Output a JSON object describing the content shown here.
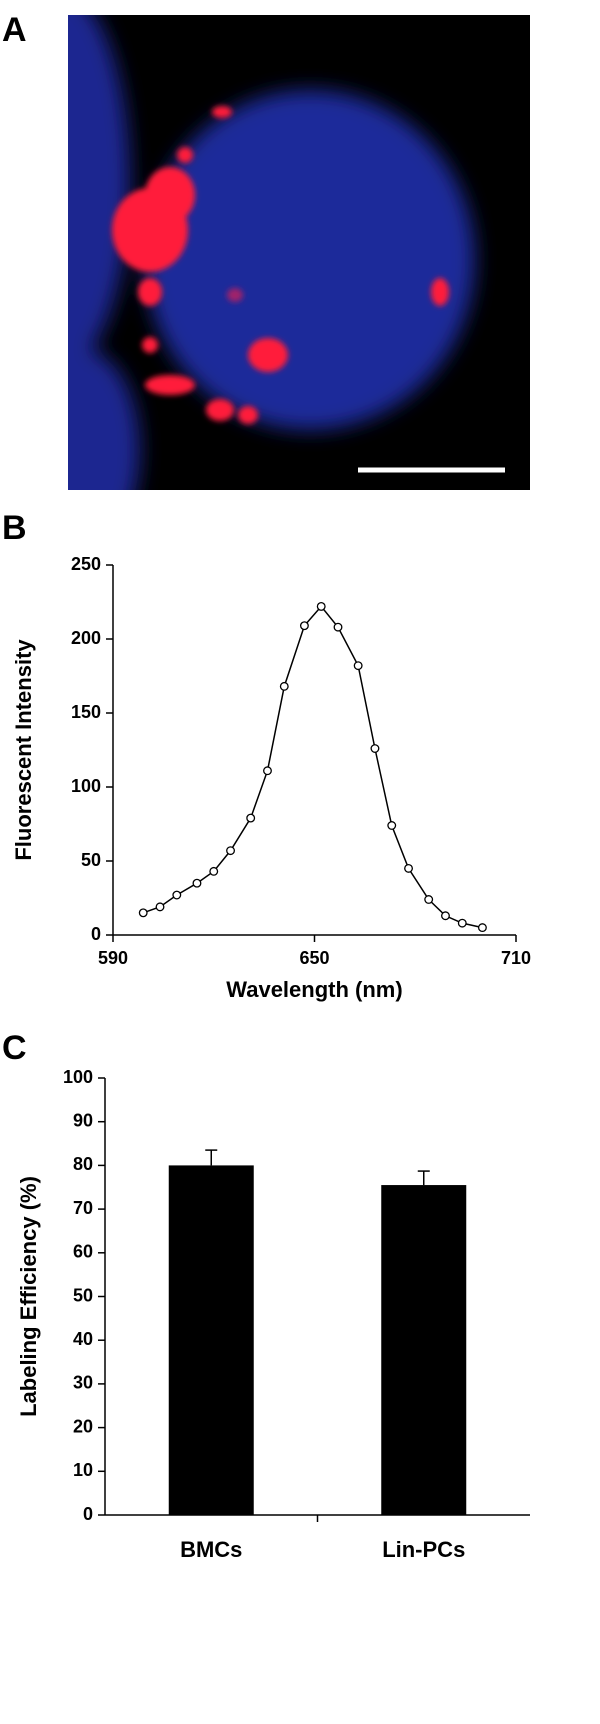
{
  "panel_labels": [
    "A",
    "B",
    "C"
  ],
  "chart_data": [
    {
      "type": "line",
      "xlabel": "Wavelength (nm)",
      "ylabel": "Fluorescent Intensity",
      "x": [
        599,
        604,
        609,
        615,
        620,
        625,
        631,
        636,
        641,
        647,
        652,
        657,
        663,
        668,
        673,
        678,
        684,
        689,
        694,
        700
      ],
      "values": [
        15,
        19,
        27,
        35,
        43,
        57,
        79,
        111,
        168,
        209,
        222,
        208,
        182,
        126,
        74,
        45,
        24,
        13,
        8,
        5
      ],
      "color": "#000000",
      "xlim": [
        590,
        710
      ],
      "xticks": [
        590,
        650,
        710
      ],
      "ylim": [
        0,
        250
      ],
      "yticks": [
        0,
        50,
        100,
        150,
        200,
        250
      ]
    },
    {
      "type": "bar",
      "ylabel": "Labeling Efficiency (%)",
      "categories": [
        "BMCs",
        "Lin-PCs"
      ],
      "values": [
        80,
        75.5
      ],
      "errors": [
        3.5,
        3.2
      ],
      "color": "#000000",
      "ylim": [
        0,
        100
      ],
      "yticks": [
        0,
        10,
        20,
        30,
        40,
        50,
        60,
        70,
        80,
        90,
        100
      ]
    }
  ]
}
